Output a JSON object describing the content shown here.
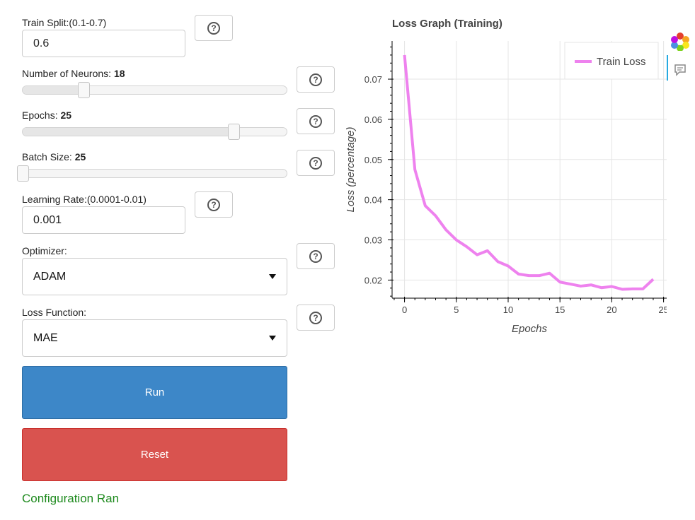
{
  "form": {
    "train_split": {
      "label": "Train Split:(0.1-0.7)",
      "value": "0.6"
    },
    "neurons": {
      "label": "Number of Neurons:",
      "value": "18",
      "level": 0.23
    },
    "epochs": {
      "label": "Epochs:",
      "value": "25",
      "level": 0.8
    },
    "batch_size": {
      "label": "Batch Size:",
      "value": "25",
      "level": 0.0
    },
    "learning_rate": {
      "label": "Learning Rate:(0.0001-0.01)",
      "value": "0.001"
    },
    "optimizer": {
      "label": "Optimizer:",
      "selected": "ADAM"
    },
    "loss_function": {
      "label": "Loss Function:",
      "selected": "MAE"
    },
    "run_label": "Run",
    "reset_label": "Reset",
    "status": "Configuration Ran",
    "help_icon": "question-circle-icon"
  },
  "colors": {
    "run": "#3d87c8",
    "reset": "#d9534f",
    "line": "#ee82ee",
    "status": "#1d8a1d"
  },
  "toolbar": {
    "logo_icon": "bokeh-logo-icon",
    "hover_icon": "hover-tool-icon"
  },
  "chart_data": {
    "type": "line",
    "title": "Loss Graph (Training)",
    "xlabel": "Epochs",
    "ylabel": "Loss (percentage)",
    "xlim": [
      -1.2,
      25.3
    ],
    "ylim": [
      0.0155,
      0.0795
    ],
    "xticks": [
      0,
      5,
      10,
      15,
      20,
      25
    ],
    "yticks": [
      0.02,
      0.03,
      0.04,
      0.05,
      0.06,
      0.07
    ],
    "ytick_labels": [
      "0.02",
      "0.03",
      "0.04",
      "0.05",
      "0.06",
      "0.07"
    ],
    "grid": true,
    "legend": "top-right",
    "series": [
      {
        "name": "Train Loss",
        "x": [
          0,
          1,
          2,
          3,
          4,
          5,
          6,
          7,
          8,
          9,
          10,
          11,
          12,
          13,
          14,
          15,
          16,
          17,
          18,
          19,
          20,
          21,
          22,
          23,
          24
        ],
        "y": [
          0.076,
          0.0475,
          0.0385,
          0.036,
          0.0325,
          0.03,
          0.0283,
          0.0263,
          0.0273,
          0.0246,
          0.0235,
          0.0215,
          0.0211,
          0.0211,
          0.0217,
          0.0195,
          0.019,
          0.0185,
          0.0188,
          0.0181,
          0.0184,
          0.0177,
          0.0178,
          0.0178,
          0.0202
        ]
      }
    ]
  }
}
